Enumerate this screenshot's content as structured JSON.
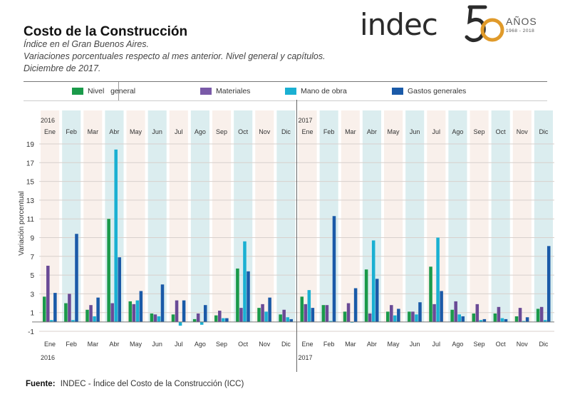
{
  "header": {
    "title": "Costo de la Construcción",
    "subtitle_lines": [
      "Índice en el Gran Buenos Aires.",
      "Variaciones porcentuales respecto al mes anterior. Nivel general y capítulos.",
      "Diciembre de 2017."
    ]
  },
  "logo": {
    "brand": "indec",
    "number": "50",
    "anos": "AÑOS",
    "years": "1968 - 2018",
    "colors": {
      "dark": "#2b2b2b",
      "gold": "#e09a2a"
    }
  },
  "footer": {
    "label": "Fuente:",
    "text": "INDEC - Índice del Costo de la Construcción (ICC)"
  },
  "chart_data": {
    "type": "bar",
    "title": "Costo de la Construcción",
    "ylabel": "Variación  porcentual",
    "xlabel": "",
    "ylim": [
      -1,
      19
    ],
    "yticks": [
      -1,
      1,
      3,
      5,
      7,
      9,
      11,
      13,
      15,
      17,
      19
    ],
    "grid": true,
    "legend_position": "top",
    "years": [
      "2016",
      "2017"
    ],
    "months": [
      "Ene",
      "Feb",
      "Mar",
      "Abr",
      "May",
      "Jun",
      "Jul",
      "Ago",
      "Sep",
      "Oct",
      "Nov",
      "Dic"
    ],
    "categories": [
      "Ene 2016",
      "Feb 2016",
      "Mar 2016",
      "Abr 2016",
      "May 2016",
      "Jun 2016",
      "Jul 2016",
      "Ago 2016",
      "Sep 2016",
      "Oct 2016",
      "Nov 2016",
      "Dic 2016",
      "Ene 2017",
      "Feb 2017",
      "Mar 2017",
      "Abr 2017",
      "May 2017",
      "Jun 2017",
      "Jul 2017",
      "Ago 2017",
      "Sep 2017",
      "Oct 2017",
      "Nov 2017",
      "Dic 2017"
    ],
    "series": [
      {
        "name": "Nivel   general",
        "color": "#1a9a4a",
        "values": [
          2.7,
          2.0,
          1.3,
          11.0,
          2.2,
          0.9,
          0.8,
          0.3,
          0.7,
          5.7,
          1.5,
          0.8,
          2.7,
          1.8,
          1.1,
          5.6,
          1.1,
          1.1,
          5.9,
          1.3,
          0.9,
          0.9,
          0.6,
          1.4
        ]
      },
      {
        "name": "Materiales",
        "color": "#6a4a96",
        "values": [
          6.0,
          3.0,
          1.8,
          2.0,
          1.9,
          0.8,
          2.3,
          0.9,
          1.2,
          1.5,
          1.9,
          1.3,
          1.9,
          1.8,
          2.0,
          0.9,
          1.8,
          1.1,
          1.9,
          2.2,
          1.9,
          1.6,
          1.5,
          1.6
        ]
      },
      {
        "name": "Mano de obra",
        "color": "#1ab0d2",
        "values": [
          0.2,
          0.2,
          0.6,
          18.4,
          2.3,
          0.6,
          -0.4,
          -0.3,
          0.4,
          8.6,
          1.1,
          0.5,
          3.4,
          0.1,
          0.0,
          8.7,
          0.7,
          0.8,
          9.0,
          0.8,
          0.2,
          0.4,
          0.1,
          0.2
        ]
      },
      {
        "name": "Gastos generales",
        "color": "#1a5aa8",
        "values": [
          3.1,
          9.4,
          2.6,
          6.9,
          3.3,
          4.0,
          2.3,
          1.8,
          0.4,
          5.4,
          2.6,
          0.3,
          1.5,
          11.3,
          3.6,
          4.6,
          1.4,
          2.1,
          3.3,
          0.6,
          0.3,
          0.3,
          0.5,
          8.1
        ]
      }
    ],
    "band_colors": {
      "odd": "#f7ebe4",
      "even": "#cfe7ea"
    }
  }
}
